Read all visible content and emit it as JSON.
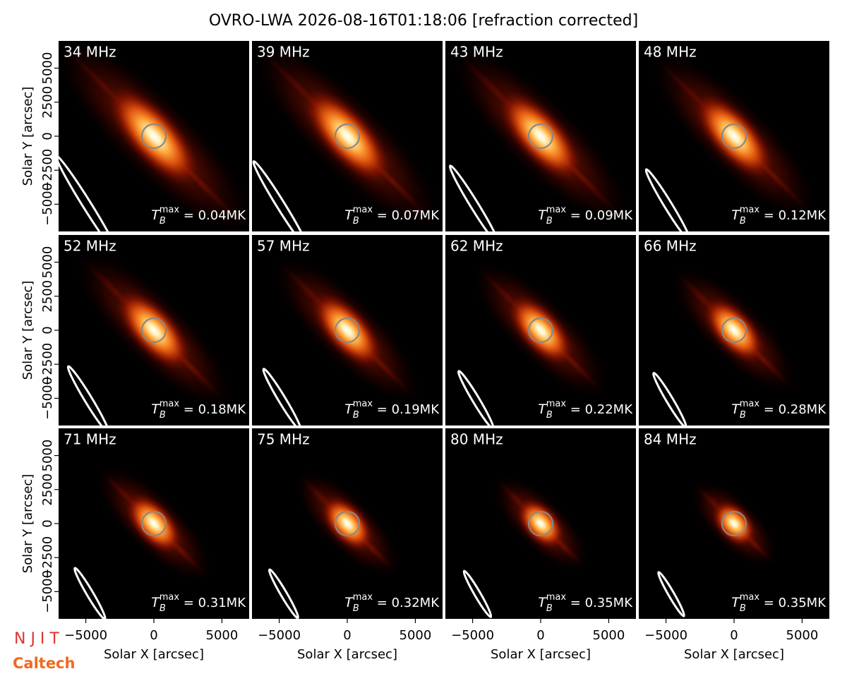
{
  "chart_data": {
    "type": "image-grid",
    "title": "OVRO-LWA 2026-08-16T01:18:06 [refraction corrected]",
    "xlabel": "Solar X [arcsec]",
    "ylabel": "Solar Y [arcsec]",
    "xlim": [
      -7000,
      7000
    ],
    "ylim": [
      -7000,
      7000
    ],
    "xticks": [
      {
        "value": -5000,
        "label": "−5000"
      },
      0,
      5000
    ],
    "yticks": [
      {
        "value": -5000,
        "label": "−5000"
      },
      {
        "value": -2500,
        "label": "−2500"
      },
      0,
      2500,
      5000
    ],
    "panels": [
      {
        "title": "34 MHz",
        "annotation": {
          "symbol": "T",
          "sub": "B",
          "sup": "max",
          "text": " = 0.04MK"
        }
      },
      {
        "title": "39 MHz",
        "annotation": {
          "symbol": "T",
          "sub": "B",
          "sup": "max",
          "text": " = 0.07MK"
        }
      },
      {
        "title": "43 MHz",
        "annotation": {
          "symbol": "T",
          "sub": "B",
          "sup": "max",
          "text": " = 0.09MK"
        }
      },
      {
        "title": "48 MHz",
        "annotation": {
          "symbol": "T",
          "sub": "B",
          "sup": "max",
          "text": " = 0.12MK"
        }
      },
      {
        "title": "52 MHz",
        "annotation": {
          "symbol": "T",
          "sub": "B",
          "sup": "max",
          "text": " = 0.18MK"
        }
      },
      {
        "title": "57 MHz",
        "annotation": {
          "symbol": "T",
          "sub": "B",
          "sup": "max",
          "text": " = 0.19MK"
        }
      },
      {
        "title": "62 MHz",
        "annotation": {
          "symbol": "T",
          "sub": "B",
          "sup": "max",
          "text": " = 0.22MK"
        }
      },
      {
        "title": "66 MHz",
        "annotation": {
          "symbol": "T",
          "sub": "B",
          "sup": "max",
          "text": " = 0.28MK"
        }
      },
      {
        "title": "71 MHz",
        "annotation": {
          "symbol": "T",
          "sub": "B",
          "sup": "max",
          "text": " = 0.31MK"
        }
      },
      {
        "title": "75 MHz",
        "annotation": {
          "symbol": "T",
          "sub": "B",
          "sup": "max",
          "text": " = 0.32MK"
        }
      },
      {
        "title": "80 MHz",
        "annotation": {
          "symbol": "T",
          "sub": "B",
          "sup": "max",
          "text": " = 0.35MK"
        }
      },
      {
        "title": "84 MHz",
        "annotation": {
          "symbol": "T",
          "sub": "B",
          "sup": "max",
          "text": " = 0.35MK"
        }
      }
    ],
    "logos": [
      "N J I T",
      "Caltech"
    ]
  }
}
